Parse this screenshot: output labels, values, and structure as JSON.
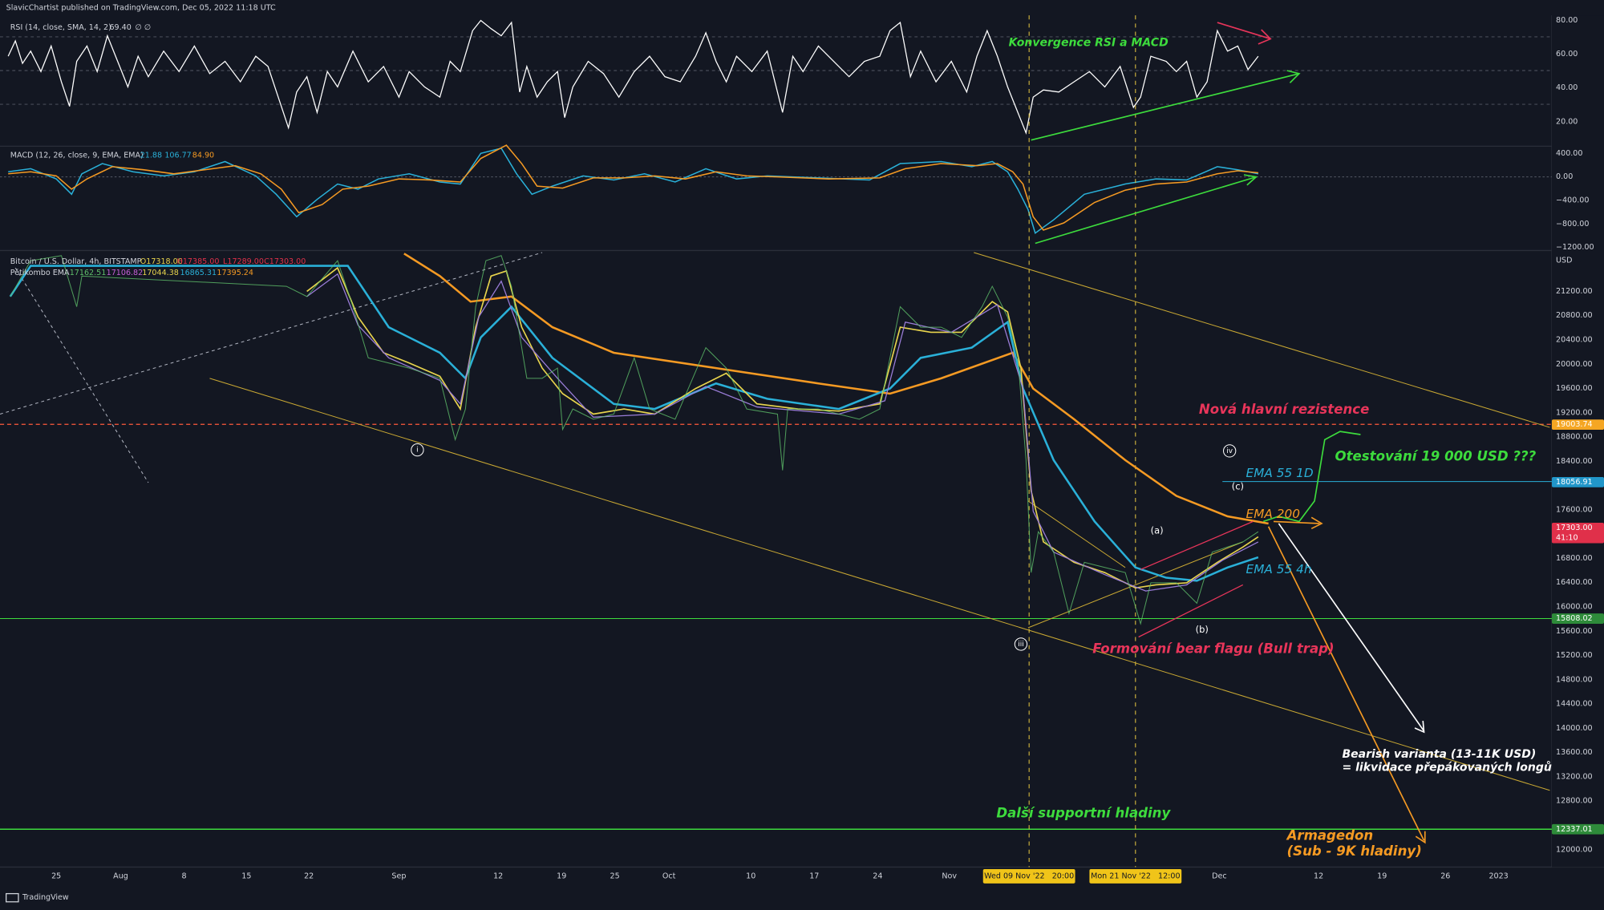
{
  "header": {
    "publisher": "SlavicChartist published on TradingView.com, Dec 05, 2022 11:18 UTC"
  },
  "rsi_pane": {
    "legend": "RSI (14, close, SMA, 14, 2)",
    "value": "69.40",
    "extra": "∅ ∅",
    "axis_labels": [
      "80.00",
      "60.00",
      "40.00",
      "20.00"
    ]
  },
  "macd_pane": {
    "legend": "MACD (12, 26, close, 9, EMA, EMA)",
    "values": [
      "21.88",
      "106.77",
      "84.90"
    ],
    "axis_labels": [
      "400.00",
      "0.00",
      "−400.00",
      "−800.00",
      "−1200.00"
    ]
  },
  "price_pane": {
    "symbol": "Bitcoin / U.S. Dollar, 4h, BITSTAMP",
    "ohlc": [
      "O17318.00",
      "H17385.00",
      "L17289.00",
      "C17303.00"
    ],
    "ema_legend": "Pětikombo EMA",
    "ema_values": [
      "17162.51",
      "17106.82",
      "17044.38",
      "16865.31",
      "17395.24"
    ],
    "currency": "USD",
    "axis_labels": [
      "21200.00",
      "20800.00",
      "20400.00",
      "20000.00",
      "19600.00",
      "19200.00",
      "18800.00",
      "18400.00",
      "17600.00",
      "16800.00",
      "16400.00",
      "16000.00",
      "15600.00",
      "15200.00",
      "14800.00",
      "14400.00",
      "14000.00",
      "13600.00",
      "13200.00",
      "12800.00",
      "12000.00"
    ],
    "price_tags": [
      {
        "label": "19003.74",
        "color": "#f5a623"
      },
      {
        "label": "18056.91",
        "color": "#2196c9"
      },
      {
        "label": "17303.00",
        "sub": "41:10",
        "color": "#e0304a"
      },
      {
        "label": "15808.02",
        "color": "#2e8b3a"
      },
      {
        "label": "12337.01",
        "color": "#2e8b3a"
      }
    ],
    "annotations": [
      {
        "text": "Konvergence RSI a MACD",
        "color": "#3ddc3d"
      },
      {
        "text": "Nová hlavní rezistence",
        "color": "#e8355a"
      },
      {
        "text": "Otestování 19 000 USD ???",
        "color": "#3ddc3d"
      },
      {
        "text": "EMA 55 1D",
        "color": "#2ab0d8"
      },
      {
        "text": "EMA 200",
        "color": "#f59a23"
      },
      {
        "text": "EMA 55 4h",
        "color": "#2ab0d8"
      },
      {
        "text": "Formování bear flagu (Bull trap)",
        "color": "#e8355a"
      },
      {
        "text": "Další supportní hladiny",
        "color": "#3ddc3d"
      },
      {
        "text": "Armagedon",
        "color": "#f59a23"
      },
      {
        "text": "(Sub - 9K hladiny)",
        "color": "#f59a23"
      }
    ],
    "bearish_note": [
      "Bearish varianta (13-11K USD)",
      "= likvidace přepákovaných longů"
    ],
    "wave_labels": [
      "i",
      "iii",
      "iv",
      "(a)",
      "(b)",
      "(c)"
    ]
  },
  "time_axis": {
    "labels": [
      "25",
      "Aug",
      "8",
      "15",
      "22",
      "Sep",
      "12",
      "19",
      "25",
      "Oct",
      "10",
      "17",
      "24",
      "Nov",
      "Dec",
      "12",
      "19",
      "26",
      "2023"
    ],
    "cursor_labels": [
      "Wed 09 Nov '22   20:00",
      "Mon 21 Nov '22   12:00"
    ]
  },
  "footer": {
    "brand": "TradingView"
  }
}
